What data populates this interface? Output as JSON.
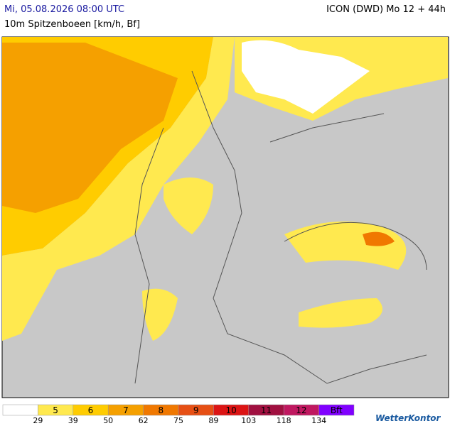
{
  "header": {
    "date": "Mi, 05.08.2026 08:00 UTC",
    "variable": "10m Spitzenboeen [km/h, Bf]",
    "model": "ICON (DWD) Mo 12 + 44h"
  },
  "legend": {
    "items": [
      {
        "color": "#ffffff"
      },
      {
        "label": "5",
        "color": "#ffe94f"
      },
      {
        "label": "6",
        "color": "#ffcc00"
      },
      {
        "label": "7",
        "color": "#f5a000"
      },
      {
        "label": "8",
        "color": "#f07800"
      },
      {
        "label": "9",
        "color": "#e64f14"
      },
      {
        "label": "10",
        "color": "#dc1414"
      },
      {
        "label": "11",
        "color": "#a01040"
      },
      {
        "label": "12",
        "color": "#c01860"
      },
      {
        "label": "Bft",
        "color": "#8000ff"
      }
    ],
    "thresholds": [
      29,
      39,
      50,
      62,
      75,
      89,
      103,
      118,
      134
    ]
  },
  "logo": "WetterKontor"
}
